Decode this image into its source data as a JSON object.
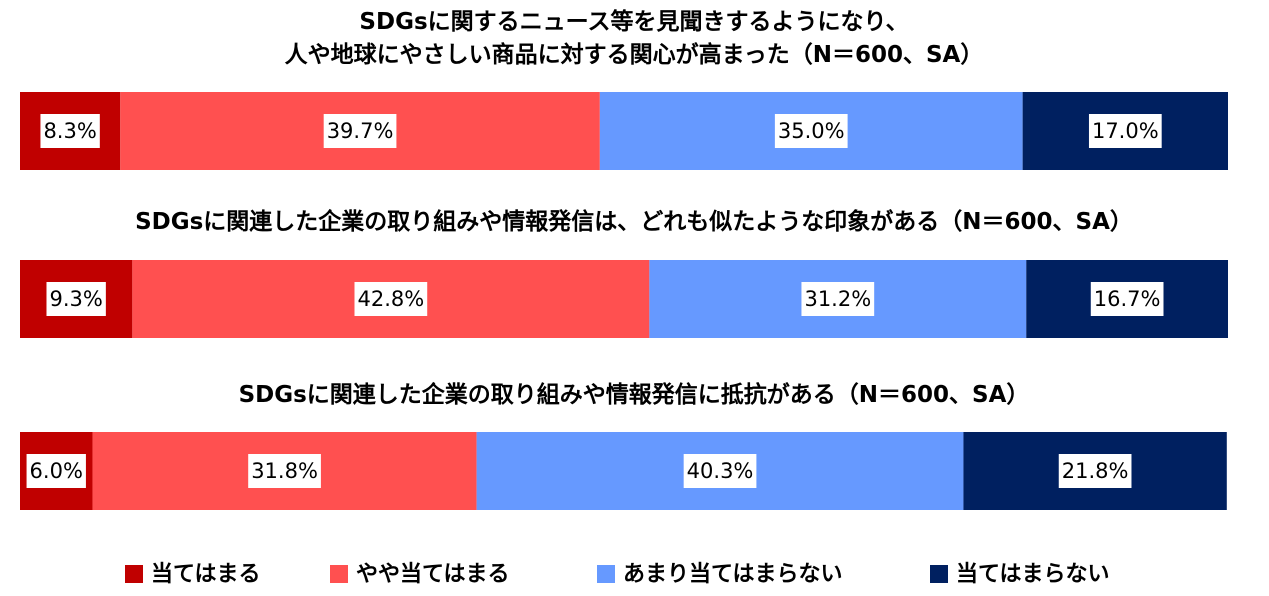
{
  "chart_data": {
    "type": "bar",
    "stacked": true,
    "orientation": "horizontal",
    "categories": [
      "SDGsに関するニュース等を見聞きするようになり、\n人や地球にやさしい商品に対する関心が高まった（N＝600、SA）",
      "SDGsに関連した企業の取り組みや情報発信は、どれも似たような印象がある（N＝600、SA）",
      "SDGsに関連した企業の取り組みや情報発信に抵抗がある（N＝600、SA）"
    ],
    "xlim": [
      0,
      100
    ],
    "legend": "bottom",
    "series": [
      {
        "name": "当てはまる",
        "color": "#c00000",
        "values": [
          8.3,
          9.3,
          6.0
        ],
        "value_labels": [
          "8.3%",
          "9.3%",
          "6.0%"
        ]
      },
      {
        "name": "やや当てはまる",
        "color": "#ff5050",
        "values": [
          39.7,
          42.8,
          31.8
        ],
        "value_labels": [
          "39.7%",
          "42.8%",
          "31.8%"
        ]
      },
      {
        "name": "あまり当てはまらない",
        "color": "#6699ff",
        "values": [
          35.0,
          31.2,
          40.3
        ],
        "value_labels": [
          "35.0%",
          "31.2%",
          "40.3%"
        ]
      },
      {
        "name": "当てはまらない",
        "color": "#002060",
        "values": [
          17.0,
          16.7,
          21.8
        ],
        "value_labels": [
          "17.0%",
          "16.7%",
          "21.8%"
        ]
      }
    ]
  }
}
